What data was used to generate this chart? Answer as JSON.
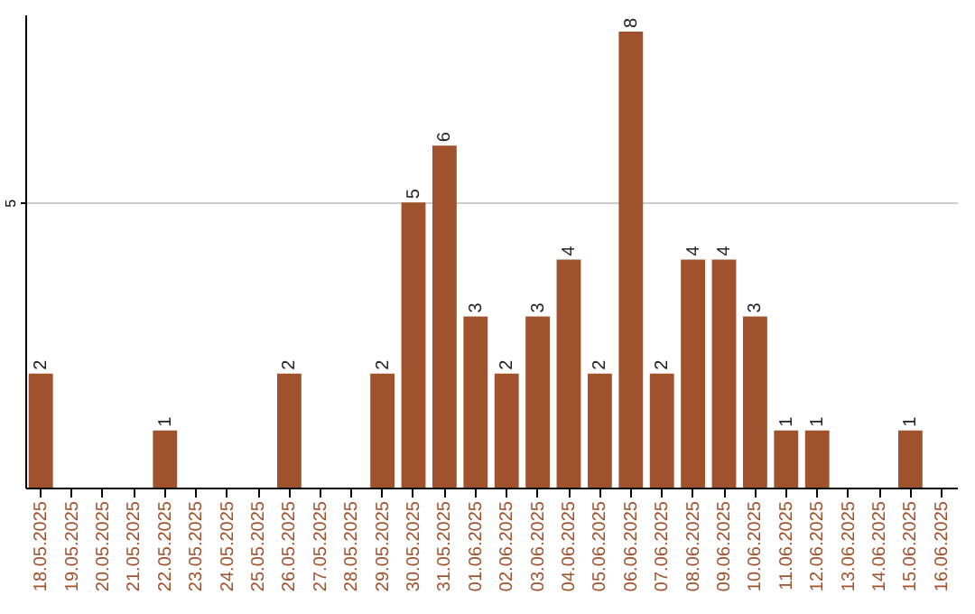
{
  "chart_data": {
    "type": "bar",
    "categories": [
      "18.05.2025",
      "19.05.2025",
      "20.05.2025",
      "21.05.2025",
      "22.05.2025",
      "23.05.2025",
      "24.05.2025",
      "25.05.2025",
      "26.05.2025",
      "27.05.2025",
      "28.05.2025",
      "29.05.2025",
      "30.05.2025",
      "31.05.2025",
      "01.06.2025",
      "02.06.2025",
      "03.06.2025",
      "04.06.2025",
      "05.06.2025",
      "06.06.2025",
      "07.06.2025",
      "08.06.2025",
      "09.06.2025",
      "10.06.2025",
      "11.06.2025",
      "12.06.2025",
      "13.06.2025",
      "14.06.2025",
      "15.06.2025",
      "16.06.2025"
    ],
    "values": [
      2,
      0,
      0,
      0,
      1,
      0,
      0,
      0,
      2,
      0,
      0,
      2,
      5,
      6,
      3,
      2,
      3,
      4,
      2,
      8,
      2,
      4,
      4,
      3,
      1,
      1,
      0,
      0,
      1,
      0
    ],
    "value_labels": [
      "2",
      null,
      null,
      null,
      "1",
      null,
      null,
      null,
      "2",
      null,
      null,
      "2",
      "5",
      "6",
      "3",
      "2",
      "3",
      "4",
      "2",
      "8",
      "2",
      "4",
      "4",
      "3",
      "1",
      "1",
      null,
      null,
      "1",
      null
    ],
    "color": "#a0522d",
    "ylim": [
      0,
      8.3
    ],
    "yticks": [
      5
    ],
    "grid": "y"
  }
}
